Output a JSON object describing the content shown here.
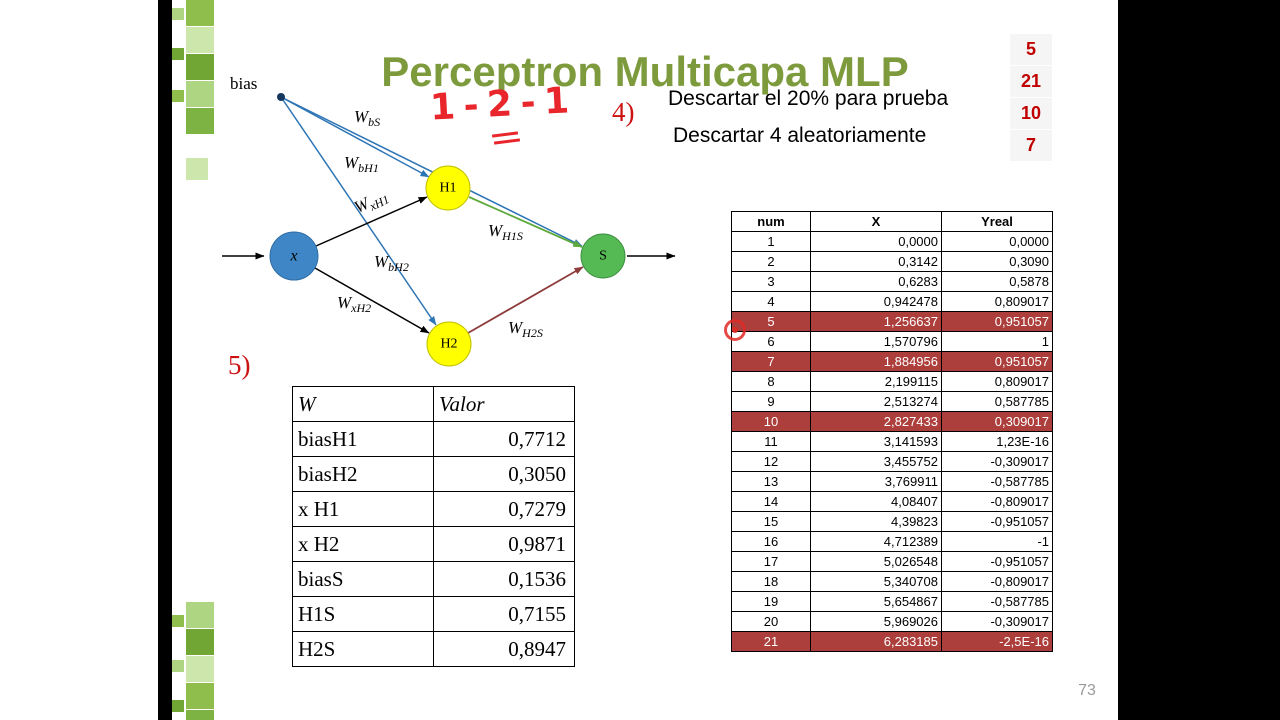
{
  "slide": {
    "title": "Perceptron Multicapa MLP",
    "page_number": "73"
  },
  "annotations": {
    "handwritten": "1 - 2 - 1",
    "item4_label": "4)",
    "item5_label": "5)",
    "line1": "Descartar el 20% para prueba",
    "line2": "Descartar 4 aleatoriamente",
    "side_numbers": [
      "5",
      "21",
      "10",
      "7"
    ]
  },
  "diagram": {
    "bias_label": "bias",
    "w_symbol": "W",
    "nodes": {
      "x": "x",
      "h1": "H1",
      "h2": "H2",
      "s": "S"
    },
    "weights": {
      "bS": "bS",
      "bH1": "bH1",
      "xH1": "xH1",
      "H1S": "H1S",
      "bH2": "bH2",
      "xH2": "xH2",
      "H2S": "H2S"
    }
  },
  "weights_table": {
    "headers": [
      "W",
      "Valor"
    ],
    "rows": [
      [
        "biasH1",
        "0,7712"
      ],
      [
        "biasH2",
        "0,3050"
      ],
      [
        "x H1",
        "0,7279"
      ],
      [
        "x H2",
        "0,9871"
      ],
      [
        "biasS",
        "0,1536"
      ],
      [
        "H1S",
        "0,7155"
      ],
      [
        "H2S",
        "0,8947"
      ]
    ]
  },
  "data_table": {
    "headers": [
      "num",
      "X",
      "Yreal"
    ],
    "highlighted_nums": [
      "5",
      "7",
      "10",
      "21"
    ],
    "rows": [
      [
        "1",
        "0,0000",
        "0,0000"
      ],
      [
        "2",
        "0,3142",
        "0,3090"
      ],
      [
        "3",
        "0,6283",
        "0,5878"
      ],
      [
        "4",
        "0,942478",
        "0,809017"
      ],
      [
        "5",
        "1,256637",
        "0,951057"
      ],
      [
        "6",
        "1,570796",
        "1"
      ],
      [
        "7",
        "1,884956",
        "0,951057"
      ],
      [
        "8",
        "2,199115",
        "0,809017"
      ],
      [
        "9",
        "2,513274",
        "0,587785"
      ],
      [
        "10",
        "2,827433",
        "0,309017"
      ],
      [
        "11",
        "3,141593",
        "1,23E-16"
      ],
      [
        "12",
        "3,455752",
        "-0,309017"
      ],
      [
        "13",
        "3,769911",
        "-0,587785"
      ],
      [
        "14",
        "4,08407",
        "-0,809017"
      ],
      [
        "15",
        "4,39823",
        "-0,951057"
      ],
      [
        "16",
        "4,712389",
        "-1"
      ],
      [
        "17",
        "5,026548",
        "-0,951057"
      ],
      [
        "18",
        "5,340708",
        "-0,809017"
      ],
      [
        "19",
        "5,654867",
        "-0,587785"
      ],
      [
        "20",
        "5,969026",
        "-0,309017"
      ],
      [
        "21",
        "6,283185",
        "-2,5E-16"
      ]
    ]
  },
  "colors": {
    "title_green": "#7D9B3D",
    "highlight_red": "#AC3F3C",
    "annotation_red": "#E8262B",
    "side_number_red": "#C00000",
    "node_blue": "#3F86C6",
    "node_yellow": "#FFFF00",
    "node_green": "#55B954",
    "edge_blue": "#2E75B6",
    "edge_green": "#5EA93C",
    "edge_darkred": "#8E3B3B"
  }
}
